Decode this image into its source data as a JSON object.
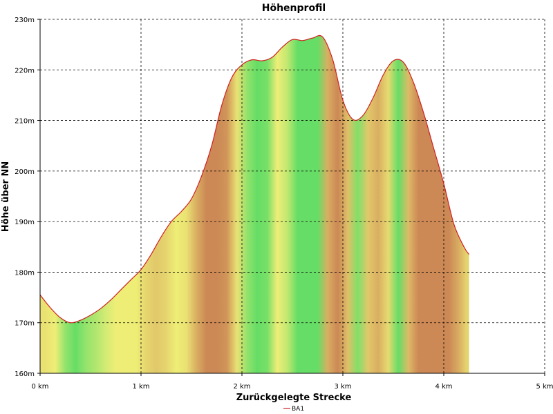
{
  "chart_data": {
    "type": "area",
    "title": "Höhenprofil",
    "xlabel": "Zurückgelegte Strecke",
    "ylabel": "Höhe über NN",
    "xlim": [
      0,
      5
    ],
    "ylim": [
      160,
      230
    ],
    "x_ticks": [
      0,
      1,
      2,
      3,
      4,
      5
    ],
    "x_tick_labels": [
      "0 km",
      "1 km",
      "2 km",
      "3 km",
      "4 km",
      "5 km"
    ],
    "y_ticks": [
      160,
      170,
      180,
      190,
      200,
      210,
      220,
      230
    ],
    "y_tick_labels": [
      "160m",
      "170m",
      "180m",
      "190m",
      "200m",
      "210m",
      "220m",
      "230m"
    ],
    "grid": true,
    "legend_position": "bottom-center",
    "colors": {
      "line": "#d02020",
      "flat": "#66dd66",
      "moderate": "#eeee77",
      "steep": "#cc8855",
      "grid": "#000000"
    },
    "series": [
      {
        "name": "BA1",
        "x": [
          0,
          0.1,
          0.2,
          0.3,
          0.4,
          0.5,
          0.6,
          0.7,
          0.8,
          0.9,
          1.0,
          1.1,
          1.2,
          1.3,
          1.4,
          1.5,
          1.6,
          1.7,
          1.8,
          1.9,
          2.0,
          2.1,
          2.2,
          2.3,
          2.4,
          2.5,
          2.6,
          2.7,
          2.8,
          2.9,
          3.0,
          3.1,
          3.2,
          3.3,
          3.4,
          3.5,
          3.6,
          3.7,
          3.8,
          3.9,
          4.0,
          4.1,
          4.2,
          4.25
        ],
        "values": [
          175.5,
          173,
          171,
          170,
          170.5,
          171.5,
          172.8,
          174.5,
          176.5,
          178.5,
          180.5,
          183.5,
          187,
          190,
          192,
          194.5,
          199,
          205,
          213,
          218.5,
          221,
          222,
          221.8,
          222.5,
          224.5,
          226,
          225.8,
          226.3,
          226.5,
          222,
          214,
          210.2,
          211,
          214.5,
          219,
          221.8,
          221.5,
          217.5,
          211.5,
          204.5,
          197.5,
          189.5,
          185,
          183.5
        ]
      }
    ]
  }
}
